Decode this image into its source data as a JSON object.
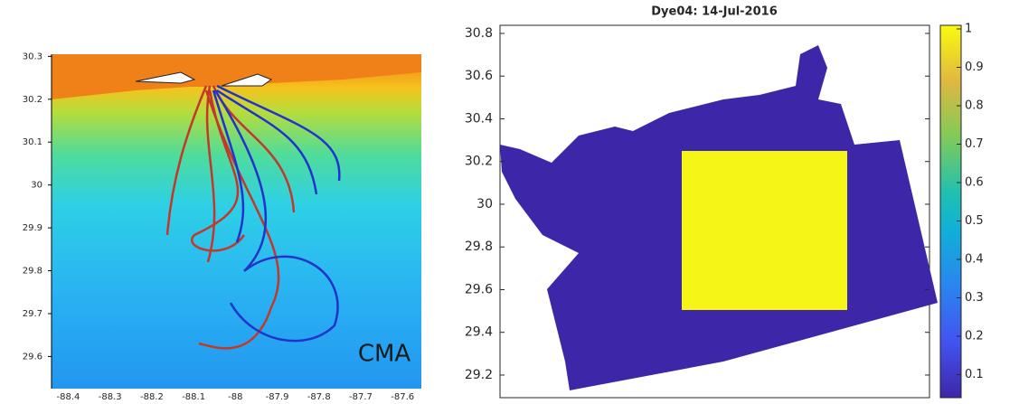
{
  "chart_data": [
    {
      "type": "map",
      "annotations": [
        "CMA"
      ],
      "xlim": [
        -88.44,
        -87.555
      ],
      "xticks": [
        -88.4,
        -88.3,
        -88.2,
        -88.1,
        -88,
        -87.9,
        -87.8,
        -87.7,
        -87.6
      ],
      "ylim": [
        29.525,
        30.305
      ],
      "yticks": [
        29.6,
        29.7,
        29.8,
        29.9,
        30,
        30.1,
        30.2,
        30.3
      ]
    },
    {
      "type": "map",
      "title": "Dye04: 14-Jul-2016",
      "ylim": [
        29.094,
        30.838
      ],
      "yticks": [
        29.2,
        29.4,
        29.6,
        29.8,
        30,
        30.2,
        30.4,
        30.6,
        30.8
      ],
      "clim": [
        0,
        1
      ],
      "cticks": [
        0.1,
        0.2,
        0.3,
        0.4,
        0.5,
        0.6,
        0.7,
        0.8,
        0.9,
        1
      ]
    }
  ]
}
